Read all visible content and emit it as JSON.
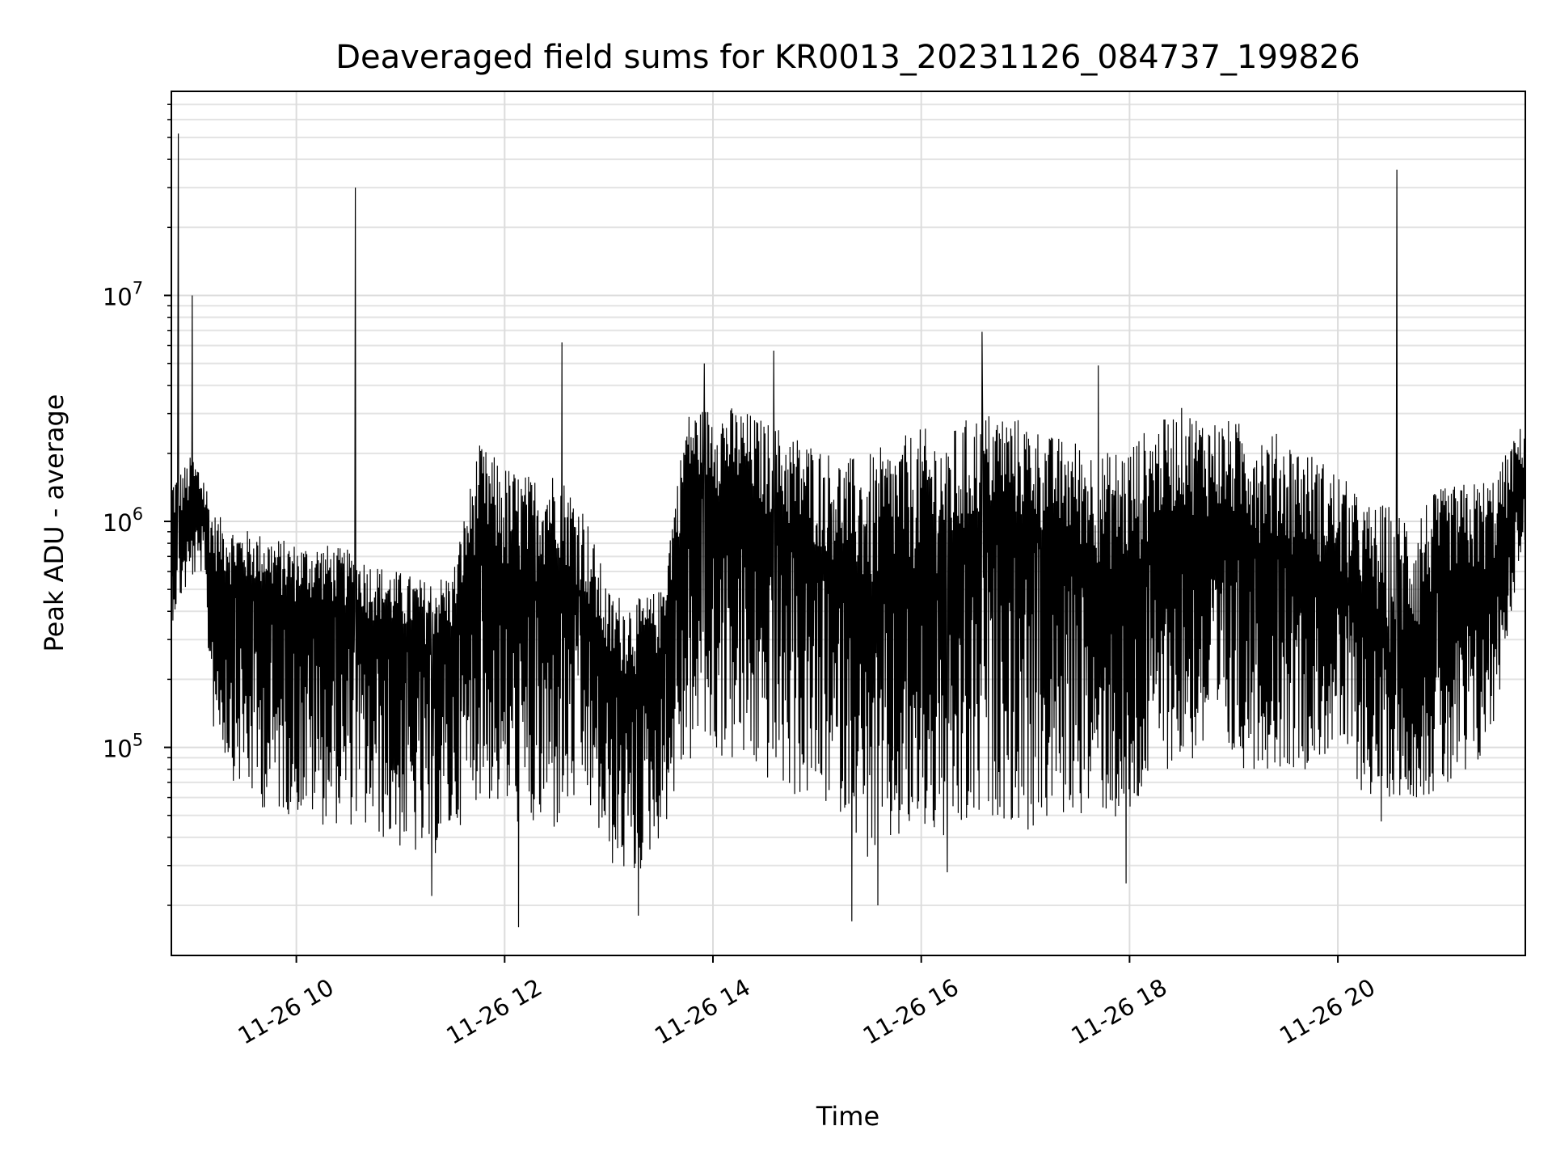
{
  "chart_data": {
    "type": "line",
    "title": "Deaveraged field sums for KR0013_20231126_084737_199826",
    "xlabel": "Time",
    "ylabel": "Peak ADU - average",
    "x_axis": {
      "kind": "datetime",
      "date": "2023-11-26",
      "range": [
        "08:48",
        "21:48"
      ],
      "ticks": [
        "10:00",
        "12:00",
        "14:00",
        "16:00",
        "18:00",
        "20:00"
      ],
      "tick_labels": [
        "11-26 10",
        "11-26 12",
        "11-26 14",
        "11-26 16",
        "11-26 18",
        "11-26 20"
      ]
    },
    "y_axis": {
      "scale": "log",
      "range": [
        12000,
        80000000
      ],
      "major_ticks": [
        100000,
        1000000,
        10000000
      ],
      "tick_labels": [
        {
          "base": "10",
          "exp": "5"
        },
        {
          "base": "10",
          "exp": "6"
        },
        {
          "base": "10",
          "exp": "7"
        }
      ]
    },
    "grid": true,
    "line_color": "#000000",
    "series": [
      {
        "x": [
          "08:48",
          "08:54",
          "09:00",
          "09:06",
          "09:12",
          "09:24",
          "09:36",
          "09:48",
          "10:00",
          "10:15",
          "10:30",
          "10:45",
          "11:00",
          "11:15",
          "11:30",
          "11:45",
          "12:00",
          "12:15",
          "12:30",
          "12:45",
          "13:00",
          "13:15",
          "13:30",
          "13:45",
          "14:00",
          "14:15",
          "14:30",
          "14:45",
          "15:00",
          "15:15",
          "15:30",
          "15:45",
          "16:00",
          "16:15",
          "16:30",
          "16:45",
          "17:00",
          "17:15",
          "17:30",
          "17:45",
          "18:00",
          "18:15",
          "18:30",
          "18:45",
          "19:00",
          "19:15",
          "19:30",
          "19:45",
          "20:00",
          "20:15",
          "20:30",
          "20:45",
          "21:00",
          "21:15",
          "21:30",
          "21:45"
        ],
        "low": [
          350000,
          450000,
          550000,
          600000,
          120000,
          70000,
          55000,
          50000,
          50000,
          45000,
          45000,
          40000,
          35000,
          30000,
          40000,
          60000,
          50000,
          40000,
          40000,
          60000,
          30000,
          25000,
          40000,
          80000,
          90000,
          80000,
          70000,
          60000,
          55000,
          50000,
          30000,
          35000,
          40000,
          35000,
          40000,
          50000,
          40000,
          45000,
          50000,
          50000,
          40000,
          80000,
          80000,
          90000,
          80000,
          80000,
          80000,
          80000,
          100000,
          60000,
          60000,
          60000,
          60000,
          60000,
          120000,
          700000
        ],
        "mid": [
          900000,
          1000000,
          1100000,
          1000000,
          600000,
          500000,
          500000,
          450000,
          420000,
          420000,
          400000,
          350000,
          300000,
          280000,
          300000,
          800000,
          500000,
          500000,
          700000,
          450000,
          200000,
          200000,
          250000,
          1400000,
          1300000,
          1200000,
          1000000,
          800000,
          700000,
          600000,
          400000,
          500000,
          600000,
          550000,
          800000,
          1000000,
          900000,
          800000,
          700000,
          600000,
          500000,
          900000,
          1100000,
          1000000,
          900000,
          800000,
          700000,
          700000,
          500000,
          450000,
          250000,
          250000,
          600000,
          500000,
          600000,
          1600000
        ],
        "high": [
          1600000,
          1700000,
          2000000,
          1800000,
          1100000,
          950000,
          900000,
          850000,
          800000,
          800000,
          750000,
          650000,
          600000,
          550000,
          600000,
          2200000,
          1800000,
          1600000,
          1700000,
          1200000,
          500000,
          450000,
          500000,
          3000000,
          3300000,
          3200000,
          2800000,
          2500000,
          2200000,
          1900000,
          2000000,
          2300000,
          2600000,
          2500000,
          3000000,
          3100000,
          2800000,
          2400000,
          2300000,
          2000000,
          2300000,
          2700000,
          3200000,
          2900000,
          2800000,
          2600000,
          2400000,
          2000000,
          1700000,
          1200000,
          1200000,
          1200000,
          1400000,
          1500000,
          1600000,
          2600000
        ],
        "spikes": [
          {
            "t": "08:52",
            "y": 52000000
          },
          {
            "t": "09:00",
            "y": 10000000
          },
          {
            "t": "10:34",
            "y": 30000000
          },
          {
            "t": "12:33",
            "y": 6200000
          },
          {
            "t": "13:55",
            "y": 5000000
          },
          {
            "t": "14:35",
            "y": 5700000
          },
          {
            "t": "16:35",
            "y": 6900000
          },
          {
            "t": "17:42",
            "y": 4900000
          },
          {
            "t": "20:34",
            "y": 36000000
          }
        ],
        "dips": [
          {
            "t": "11:18",
            "y": 22000
          },
          {
            "t": "12:08",
            "y": 16000
          },
          {
            "t": "13:17",
            "y": 18000
          },
          {
            "t": "15:20",
            "y": 17000
          },
          {
            "t": "15:35",
            "y": 20000
          },
          {
            "t": "16:15",
            "y": 28000
          },
          {
            "t": "17:58",
            "y": 25000
          },
          {
            "t": "20:25",
            "y": 47000
          }
        ]
      }
    ]
  }
}
